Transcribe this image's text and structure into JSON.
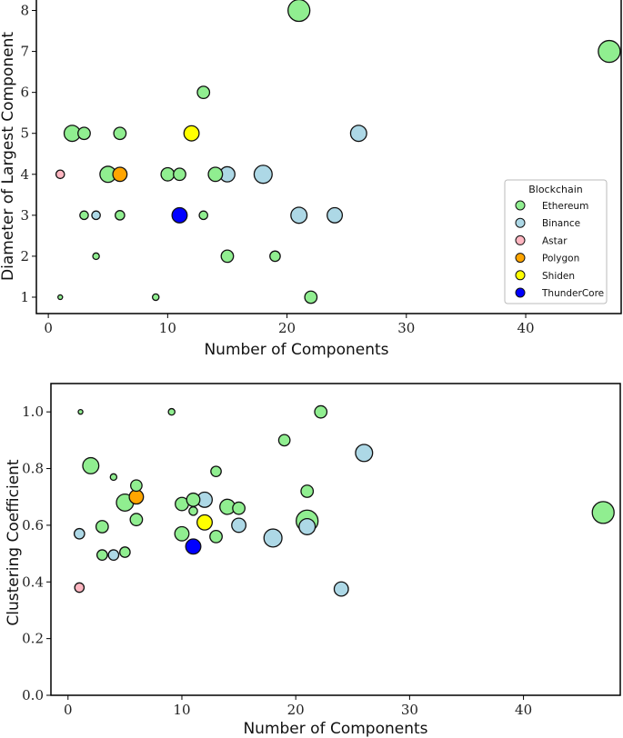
{
  "chart_data": [
    {
      "type": "scatter",
      "xlabel": "Number of Components",
      "ylabel": "Diameter of Largest Component",
      "xlim": [
        -1,
        48
      ],
      "ylim": [
        0.6,
        8.3
      ],
      "xticks": [
        0,
        10,
        20,
        30,
        40
      ],
      "yticks": [
        1,
        2,
        3,
        4,
        5,
        6,
        7,
        8
      ],
      "grid": false,
      "legend": {
        "title": "Blockchain",
        "placement": "right",
        "entries": [
          "Ethereum",
          "Binance",
          "Astar",
          "Polygon",
          "Shiden",
          "ThunderCore"
        ]
      },
      "points": [
        {
          "x": 1,
          "y": 1,
          "s": 1,
          "chain": "Ethereum"
        },
        {
          "x": 9,
          "y": 1,
          "s": 2,
          "chain": "Ethereum"
        },
        {
          "x": 22,
          "y": 1,
          "s": 5,
          "chain": "Ethereum"
        },
        {
          "x": 4,
          "y": 2,
          "s": 2,
          "chain": "Ethereum"
        },
        {
          "x": 15,
          "y": 2,
          "s": 5,
          "chain": "Ethereum"
        },
        {
          "x": 19,
          "y": 2,
          "s": 4,
          "chain": "Ethereum"
        },
        {
          "x": 3,
          "y": 3,
          "s": 3,
          "chain": "Ethereum"
        },
        {
          "x": 6,
          "y": 3,
          "s": 3.5,
          "chain": "Ethereum"
        },
        {
          "x": 13,
          "y": 3,
          "s": 3,
          "chain": "Ethereum"
        },
        {
          "x": 4,
          "y": 3,
          "s": 3,
          "chain": "Binance"
        },
        {
          "x": 21,
          "y": 3,
          "s": 7,
          "chain": "Binance"
        },
        {
          "x": 24,
          "y": 3,
          "s": 6.5,
          "chain": "Binance"
        },
        {
          "x": 11,
          "y": 3,
          "s": 6.5,
          "chain": "ThunderCore"
        },
        {
          "x": 1,
          "y": 4,
          "s": 3,
          "chain": "Astar"
        },
        {
          "x": 5,
          "y": 4,
          "s": 7,
          "chain": "Ethereum"
        },
        {
          "x": 10,
          "y": 4,
          "s": 5.5,
          "chain": "Ethereum"
        },
        {
          "x": 11,
          "y": 4,
          "s": 5,
          "chain": "Ethereum"
        },
        {
          "x": 14,
          "y": 4,
          "s": 6,
          "chain": "Ethereum"
        },
        {
          "x": 6,
          "y": 4,
          "s": 6,
          "chain": "Polygon"
        },
        {
          "x": 15,
          "y": 4,
          "s": 6.5,
          "chain": "Binance"
        },
        {
          "x": 18,
          "y": 4,
          "s": 8,
          "chain": "Binance"
        },
        {
          "x": 2,
          "y": 5,
          "s": 7,
          "chain": "Ethereum"
        },
        {
          "x": 3,
          "y": 5,
          "s": 5,
          "chain": "Ethereum"
        },
        {
          "x": 6,
          "y": 5,
          "s": 5,
          "chain": "Ethereum"
        },
        {
          "x": 12,
          "y": 5,
          "s": 6.5,
          "chain": "Shiden"
        },
        {
          "x": 26,
          "y": 5,
          "s": 7,
          "chain": "Binance"
        },
        {
          "x": 13,
          "y": 6,
          "s": 5,
          "chain": "Ethereum"
        },
        {
          "x": 47,
          "y": 7,
          "s": 10,
          "chain": "Ethereum"
        },
        {
          "x": 21,
          "y": 8,
          "s": 10,
          "chain": "Ethereum"
        }
      ]
    },
    {
      "type": "scatter",
      "xlabel": "Number of Components",
      "ylabel": "Clustering Coefficient",
      "xlim": [
        -1.5,
        48.5
      ],
      "ylim": [
        0.0,
        1.1
      ],
      "xticks": [
        0,
        10,
        20,
        30,
        40
      ],
      "yticks": [
        "0.0",
        "0.2",
        "0.4",
        "0.6",
        "0.8",
        "1.0"
      ],
      "grid": false,
      "points": [
        {
          "x": 1.1,
          "y": 1.0,
          "s": 1,
          "chain": "Ethereum"
        },
        {
          "x": 9.1,
          "y": 1.0,
          "s": 2,
          "chain": "Ethereum"
        },
        {
          "x": 22.2,
          "y": 1.0,
          "s": 5,
          "chain": "Ethereum"
        },
        {
          "x": 19,
          "y": 0.9,
          "s": 4.5,
          "chain": "Ethereum"
        },
        {
          "x": 2,
          "y": 0.81,
          "s": 7,
          "chain": "Ethereum"
        },
        {
          "x": 13,
          "y": 0.79,
          "s": 4,
          "chain": "Ethereum"
        },
        {
          "x": 4,
          "y": 0.77,
          "s": 2,
          "chain": "Ethereum"
        },
        {
          "x": 6,
          "y": 0.74,
          "s": 4.5,
          "chain": "Ethereum"
        },
        {
          "x": 21,
          "y": 0.72,
          "s": 5,
          "chain": "Ethereum"
        },
        {
          "x": 5,
          "y": 0.68,
          "s": 7.5,
          "chain": "Ethereum"
        },
        {
          "x": 10,
          "y": 0.675,
          "s": 5.5,
          "chain": "Ethereum"
        },
        {
          "x": 11,
          "y": 0.69,
          "s": 5.5,
          "chain": "Ethereum"
        },
        {
          "x": 11,
          "y": 0.65,
          "s": 3,
          "chain": "Ethereum"
        },
        {
          "x": 14,
          "y": 0.665,
          "s": 6.5,
          "chain": "Ethereum"
        },
        {
          "x": 15,
          "y": 0.66,
          "s": 5,
          "chain": "Ethereum"
        },
        {
          "x": 6,
          "y": 0.62,
          "s": 5,
          "chain": "Ethereum"
        },
        {
          "x": 21,
          "y": 0.615,
          "s": 10,
          "chain": "Ethereum"
        },
        {
          "x": 3,
          "y": 0.595,
          "s": 5,
          "chain": "Ethereum"
        },
        {
          "x": 10,
          "y": 0.57,
          "s": 6,
          "chain": "Ethereum"
        },
        {
          "x": 13,
          "y": 0.56,
          "s": 5,
          "chain": "Ethereum"
        },
        {
          "x": 3,
          "y": 0.495,
          "s": 4,
          "chain": "Ethereum"
        },
        {
          "x": 5,
          "y": 0.505,
          "s": 4,
          "chain": "Ethereum"
        },
        {
          "x": 47,
          "y": 0.645,
          "s": 10,
          "chain": "Ethereum"
        },
        {
          "x": 12,
          "y": 0.69,
          "s": 6.5,
          "chain": "Binance"
        },
        {
          "x": 26,
          "y": 0.855,
          "s": 7.5,
          "chain": "Binance"
        },
        {
          "x": 15,
          "y": 0.6,
          "s": 6,
          "chain": "Binance"
        },
        {
          "x": 21,
          "y": 0.595,
          "s": 7,
          "chain": "Binance"
        },
        {
          "x": 18,
          "y": 0.555,
          "s": 8,
          "chain": "Binance"
        },
        {
          "x": 1,
          "y": 0.57,
          "s": 4,
          "chain": "Binance"
        },
        {
          "x": 4,
          "y": 0.495,
          "s": 4,
          "chain": "Binance"
        },
        {
          "x": 24,
          "y": 0.375,
          "s": 6,
          "chain": "Binance"
        },
        {
          "x": 1,
          "y": 0.38,
          "s": 3.5,
          "chain": "Astar"
        },
        {
          "x": 6,
          "y": 0.7,
          "s": 6,
          "chain": "Polygon"
        },
        {
          "x": 12,
          "y": 0.61,
          "s": 6.5,
          "chain": "Shiden"
        },
        {
          "x": 11,
          "y": 0.525,
          "s": 6.5,
          "chain": "ThunderCore"
        }
      ]
    }
  ],
  "colors": {
    "Ethereum": "#90ee90",
    "Binance": "#add8e6",
    "Astar": "#ffb6c1",
    "Polygon": "#ffa500",
    "Shiden": "#ffff00",
    "ThunderCore": "#0000ff"
  }
}
